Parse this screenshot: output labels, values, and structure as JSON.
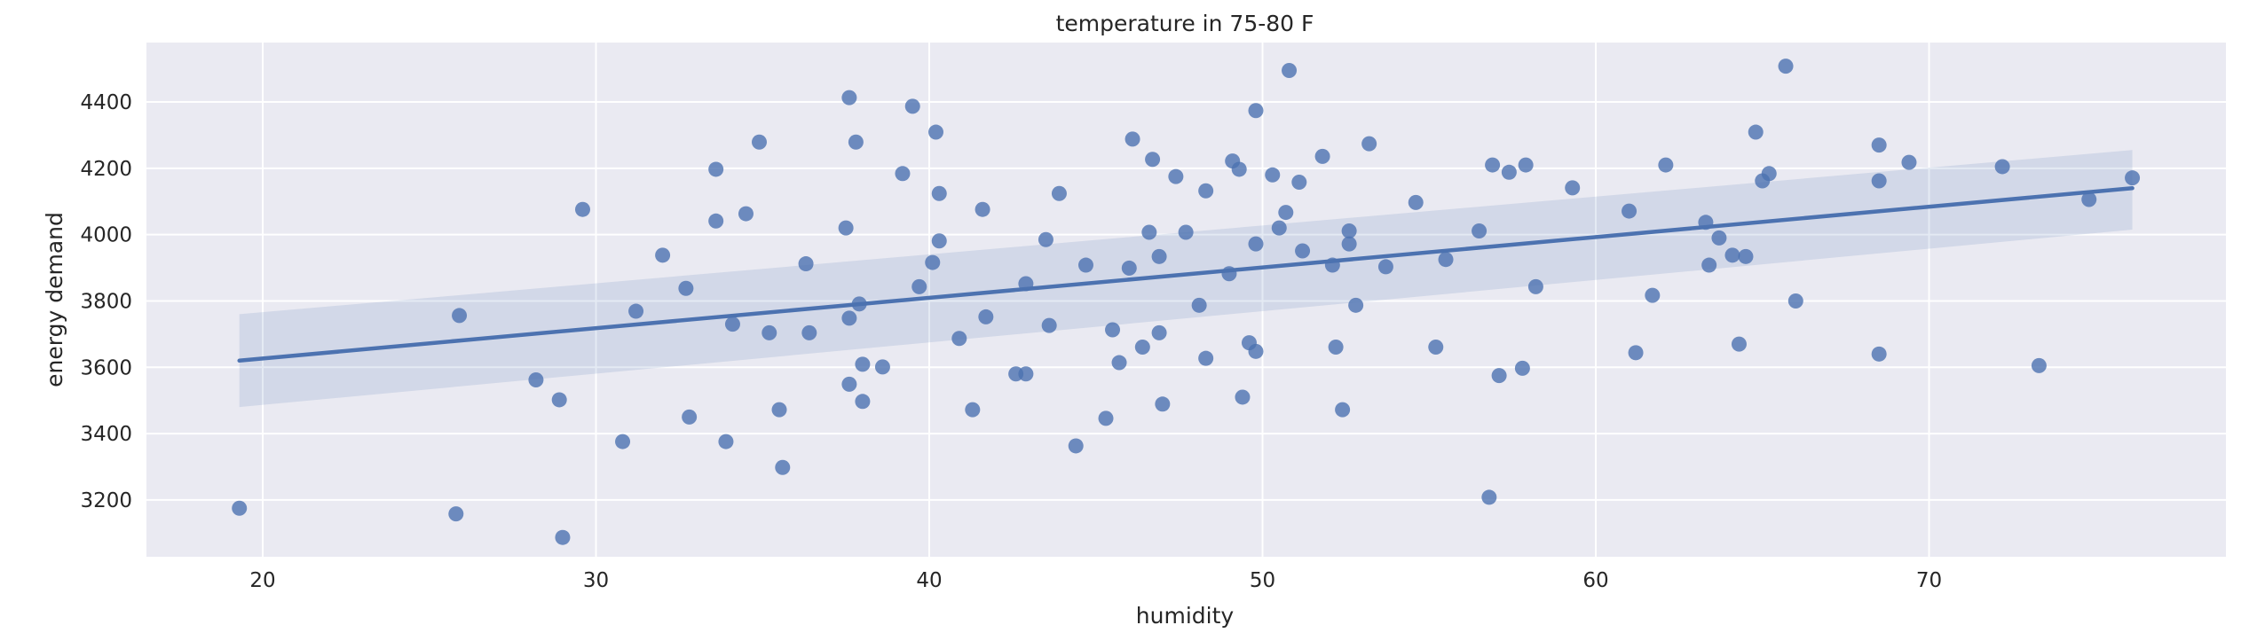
{
  "chart_data": {
    "type": "scatter",
    "title": "temperature in 75-80 F",
    "xlabel": "humidity",
    "ylabel": "energy demand",
    "xlim": [
      16.5,
      79.3
    ],
    "ylim": [
      3030,
      4580
    ],
    "xticks": [
      20,
      30,
      40,
      50,
      60,
      70
    ],
    "yticks": [
      3200,
      3400,
      3600,
      3800,
      4000,
      4200,
      4400
    ],
    "grid": true,
    "legend": null,
    "colors": {
      "background": "#eaeaf2",
      "grid": "#ffffff",
      "points": "#4c72b0",
      "line": "#4c72b0",
      "band": "#4c72b0"
    },
    "regression": {
      "x": [
        19.3,
        76.1
      ],
      "y": [
        3620,
        4140
      ],
      "ci_lower": [
        3480,
        4015
      ],
      "ci_upper": [
        3760,
        4255
      ]
    },
    "points": [
      [
        19.3,
        3175
      ],
      [
        25.8,
        3158
      ],
      [
        25.9,
        3756
      ],
      [
        28.2,
        3562
      ],
      [
        28.9,
        3502
      ],
      [
        29.0,
        3087
      ],
      [
        29.6,
        4076
      ],
      [
        30.8,
        3376
      ],
      [
        31.2,
        3769
      ],
      [
        32.0,
        3938
      ],
      [
        32.7,
        3838
      ],
      [
        32.8,
        3450
      ],
      [
        33.6,
        4197
      ],
      [
        33.6,
        4041
      ],
      [
        33.9,
        3376
      ],
      [
        34.1,
        3730
      ],
      [
        34.5,
        4063
      ],
      [
        34.9,
        4279
      ],
      [
        35.2,
        3704
      ],
      [
        35.5,
        3472
      ],
      [
        35.6,
        3298
      ],
      [
        36.3,
        3912
      ],
      [
        36.4,
        3704
      ],
      [
        37.5,
        4020
      ],
      [
        37.6,
        3748
      ],
      [
        37.6,
        3549
      ],
      [
        37.6,
        4413
      ],
      [
        37.8,
        4279
      ],
      [
        37.9,
        3791
      ],
      [
        38.0,
        3609
      ],
      [
        38.0,
        3497
      ],
      [
        38.6,
        3601
      ],
      [
        39.2,
        4184
      ],
      [
        39.5,
        4387
      ],
      [
        39.7,
        3843
      ],
      [
        40.1,
        3916
      ],
      [
        40.2,
        4309
      ],
      [
        40.3,
        3981
      ],
      [
        40.3,
        4124
      ],
      [
        40.9,
        3687
      ],
      [
        41.3,
        3472
      ],
      [
        41.6,
        4076
      ],
      [
        41.7,
        3752
      ],
      [
        42.6,
        3580
      ],
      [
        42.9,
        3580
      ],
      [
        42.9,
        3852
      ],
      [
        43.5,
        3985
      ],
      [
        43.6,
        3726
      ],
      [
        43.9,
        4124
      ],
      [
        44.4,
        3363
      ],
      [
        44.7,
        3908
      ],
      [
        45.3,
        3446
      ],
      [
        45.5,
        3713
      ],
      [
        45.7,
        3614
      ],
      [
        46.0,
        3899
      ],
      [
        46.1,
        4288
      ],
      [
        46.4,
        3661
      ],
      [
        46.6,
        4007
      ],
      [
        46.7,
        4227
      ],
      [
        46.9,
        3704
      ],
      [
        46.9,
        3934
      ],
      [
        47.0,
        3489
      ],
      [
        47.4,
        4175
      ],
      [
        47.7,
        4007
      ],
      [
        48.1,
        3787
      ],
      [
        48.3,
        4132
      ],
      [
        48.3,
        3627
      ],
      [
        49.0,
        3882
      ],
      [
        49.1,
        4222
      ],
      [
        49.3,
        4197
      ],
      [
        49.4,
        3510
      ],
      [
        49.6,
        3674
      ],
      [
        49.8,
        3972
      ],
      [
        49.8,
        3648
      ],
      [
        49.8,
        4374
      ],
      [
        50.3,
        4180
      ],
      [
        50.5,
        4020
      ],
      [
        50.7,
        4067
      ],
      [
        50.8,
        4495
      ],
      [
        51.1,
        4158
      ],
      [
        51.2,
        3951
      ],
      [
        51.8,
        4236
      ],
      [
        52.1,
        3908
      ],
      [
        52.2,
        3661
      ],
      [
        52.4,
        3472
      ],
      [
        52.6,
        3972
      ],
      [
        52.6,
        4011
      ],
      [
        52.8,
        3787
      ],
      [
        53.2,
        4274
      ],
      [
        53.7,
        3903
      ],
      [
        54.6,
        4097
      ],
      [
        55.2,
        3661
      ],
      [
        55.5,
        3925
      ],
      [
        56.5,
        4011
      ],
      [
        56.8,
        3208
      ],
      [
        56.9,
        4210
      ],
      [
        57.1,
        3575
      ],
      [
        57.4,
        4188
      ],
      [
        57.8,
        3597
      ],
      [
        57.9,
        4210
      ],
      [
        58.2,
        3843
      ],
      [
        59.3,
        4141
      ],
      [
        61.0,
        4071
      ],
      [
        61.2,
        3644
      ],
      [
        61.7,
        3817
      ],
      [
        62.1,
        4210
      ],
      [
        63.3,
        4037
      ],
      [
        63.4,
        3908
      ],
      [
        63.7,
        3990
      ],
      [
        64.1,
        3938
      ],
      [
        64.3,
        3670
      ],
      [
        64.5,
        3934
      ],
      [
        64.8,
        4309
      ],
      [
        65.0,
        4162
      ],
      [
        65.2,
        4184
      ],
      [
        65.7,
        4508
      ],
      [
        66.0,
        3800
      ],
      [
        68.5,
        4162
      ],
      [
        68.5,
        4270
      ],
      [
        68.5,
        3640
      ],
      [
        69.4,
        4218
      ],
      [
        72.2,
        4205
      ],
      [
        73.3,
        3605
      ],
      [
        74.8,
        4106
      ],
      [
        76.1,
        4171
      ]
    ]
  }
}
